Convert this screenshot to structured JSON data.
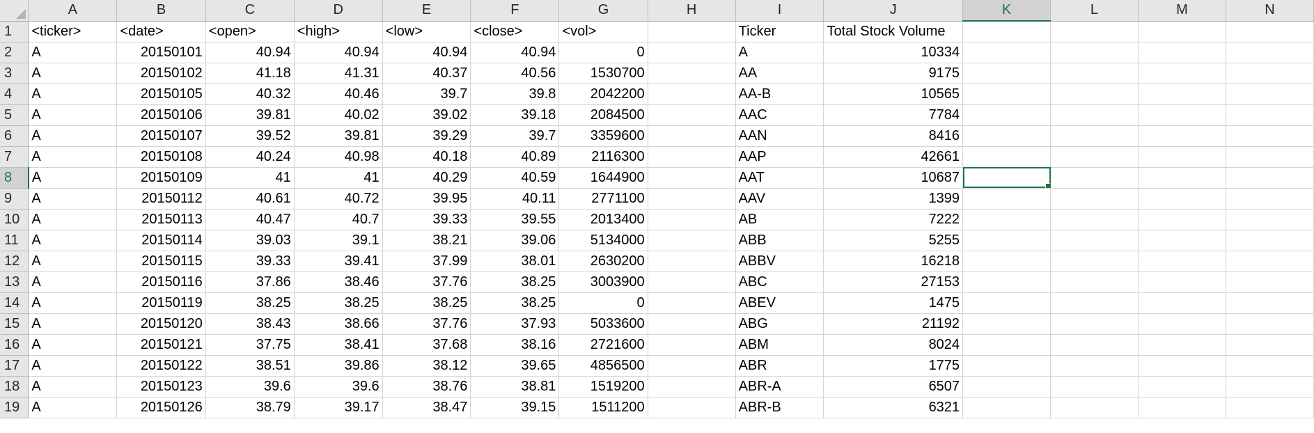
{
  "sheet": {
    "columns": [
      "A",
      "B",
      "C",
      "D",
      "E",
      "F",
      "G",
      "H",
      "I",
      "J",
      "K",
      "L",
      "M",
      "N"
    ],
    "selected_column": "K",
    "selected_row": "8",
    "rows": [
      {
        "num": "1",
        "A": "<ticker>",
        "B": "<date>",
        "C": "<open>",
        "D": "<high>",
        "E": "<low>",
        "F": "<close>",
        "G": "<vol>",
        "H": "",
        "I": "Ticker",
        "J": "Total Stock Volume"
      },
      {
        "num": "2",
        "A": "A",
        "B": "20150101",
        "C": "40.94",
        "D": "40.94",
        "E": "40.94",
        "F": "40.94",
        "G": "0",
        "H": "",
        "I": "A",
        "J": "10334"
      },
      {
        "num": "3",
        "A": "A",
        "B": "20150102",
        "C": "41.18",
        "D": "41.31",
        "E": "40.37",
        "F": "40.56",
        "G": "1530700",
        "H": "",
        "I": "AA",
        "J": "9175"
      },
      {
        "num": "4",
        "A": "A",
        "B": "20150105",
        "C": "40.32",
        "D": "40.46",
        "E": "39.7",
        "F": "39.8",
        "G": "2042200",
        "H": "",
        "I": "AA-B",
        "J": "10565"
      },
      {
        "num": "5",
        "A": "A",
        "B": "20150106",
        "C": "39.81",
        "D": "40.02",
        "E": "39.02",
        "F": "39.18",
        "G": "2084500",
        "H": "",
        "I": "AAC",
        "J": "7784"
      },
      {
        "num": "6",
        "A": "A",
        "B": "20150107",
        "C": "39.52",
        "D": "39.81",
        "E": "39.29",
        "F": "39.7",
        "G": "3359600",
        "H": "",
        "I": "AAN",
        "J": "8416"
      },
      {
        "num": "7",
        "A": "A",
        "B": "20150108",
        "C": "40.24",
        "D": "40.98",
        "E": "40.18",
        "F": "40.89",
        "G": "2116300",
        "H": "",
        "I": "AAP",
        "J": "42661"
      },
      {
        "num": "8",
        "A": "A",
        "B": "20150109",
        "C": "41",
        "D": "41",
        "E": "40.29",
        "F": "40.59",
        "G": "1644900",
        "H": "",
        "I": "AAT",
        "J": "10687"
      },
      {
        "num": "9",
        "A": "A",
        "B": "20150112",
        "C": "40.61",
        "D": "40.72",
        "E": "39.95",
        "F": "40.11",
        "G": "2771100",
        "H": "",
        "I": "AAV",
        "J": "1399"
      },
      {
        "num": "10",
        "A": "A",
        "B": "20150113",
        "C": "40.47",
        "D": "40.7",
        "E": "39.33",
        "F": "39.55",
        "G": "2013400",
        "H": "",
        "I": "AB",
        "J": "7222"
      },
      {
        "num": "11",
        "A": "A",
        "B": "20150114",
        "C": "39.03",
        "D": "39.1",
        "E": "38.21",
        "F": "39.06",
        "G": "5134000",
        "H": "",
        "I": "ABB",
        "J": "5255"
      },
      {
        "num": "12",
        "A": "A",
        "B": "20150115",
        "C": "39.33",
        "D": "39.41",
        "E": "37.99",
        "F": "38.01",
        "G": "2630200",
        "H": "",
        "I": "ABBV",
        "J": "16218"
      },
      {
        "num": "13",
        "A": "A",
        "B": "20150116",
        "C": "37.86",
        "D": "38.46",
        "E": "37.76",
        "F": "38.25",
        "G": "3003900",
        "H": "",
        "I": "ABC",
        "J": "27153"
      },
      {
        "num": "14",
        "A": "A",
        "B": "20150119",
        "C": "38.25",
        "D": "38.25",
        "E": "38.25",
        "F": "38.25",
        "G": "0",
        "H": "",
        "I": "ABEV",
        "J": "1475"
      },
      {
        "num": "15",
        "A": "A",
        "B": "20150120",
        "C": "38.43",
        "D": "38.66",
        "E": "37.76",
        "F": "37.93",
        "G": "5033600",
        "H": "",
        "I": "ABG",
        "J": "21192"
      },
      {
        "num": "16",
        "A": "A",
        "B": "20150121",
        "C": "37.75",
        "D": "38.41",
        "E": "37.68",
        "F": "38.16",
        "G": "2721600",
        "H": "",
        "I": "ABM",
        "J": "8024"
      },
      {
        "num": "17",
        "A": "A",
        "B": "20150122",
        "C": "38.51",
        "D": "39.86",
        "E": "38.12",
        "F": "39.65",
        "G": "4856500",
        "H": "",
        "I": "ABR",
        "J": "1775"
      },
      {
        "num": "18",
        "A": "A",
        "B": "20150123",
        "C": "39.6",
        "D": "39.6",
        "E": "38.76",
        "F": "38.81",
        "G": "1519200",
        "H": "",
        "I": "ABR-A",
        "J": "6507"
      },
      {
        "num": "19",
        "A": "A",
        "B": "20150126",
        "C": "38.79",
        "D": "39.17",
        "E": "38.47",
        "F": "39.15",
        "G": "1511200",
        "H": "",
        "I": "ABR-B",
        "J": "6321"
      }
    ]
  }
}
